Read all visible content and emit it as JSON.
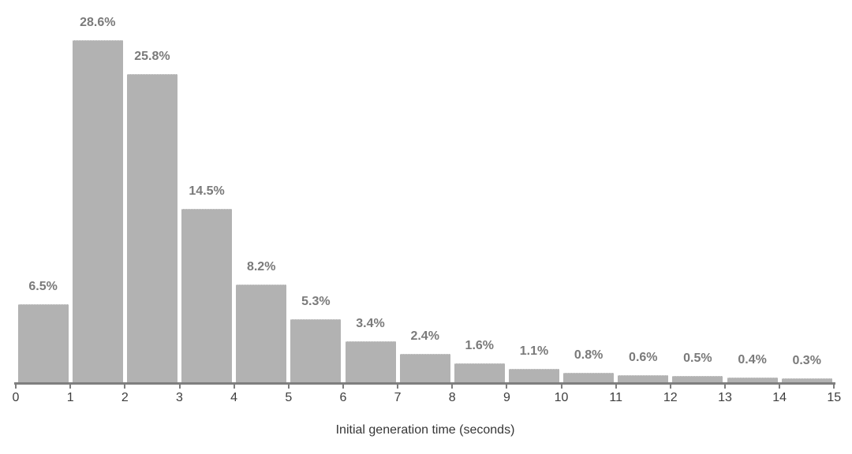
{
  "chart_data": {
    "type": "bar",
    "subtype": "histogram",
    "title": "",
    "xlabel": "Initial generation time (seconds)",
    "ylabel": "",
    "categories": [
      "0-1",
      "1-2",
      "2-3",
      "3-4",
      "4-5",
      "5-6",
      "6-7",
      "7-8",
      "8-9",
      "9-10",
      "10-11",
      "11-12",
      "12-13",
      "13-14",
      "14-15"
    ],
    "values": [
      6.5,
      28.6,
      25.8,
      14.5,
      8.2,
      5.3,
      3.4,
      2.4,
      1.6,
      1.1,
      0.8,
      0.6,
      0.5,
      0.4,
      0.3
    ],
    "value_labels": [
      "6.5%",
      "28.6%",
      "25.8%",
      "14.5%",
      "8.2%",
      "5.3%",
      "3.4%",
      "2.4%",
      "1.6%",
      "1.1%",
      "0.8%",
      "0.6%",
      "0.5%",
      "0.4%",
      "0.3%"
    ],
    "x_ticks": [
      "0",
      "1",
      "2",
      "3",
      "4",
      "5",
      "6",
      "7",
      "8",
      "9",
      "10",
      "11",
      "12",
      "13",
      "14",
      "15"
    ],
    "xlim": [
      0,
      15
    ],
    "ylim": [
      0,
      30
    ],
    "unit": "percent",
    "grid": false,
    "legend": "none",
    "colors": {
      "background": "#ffffff",
      "bar_fill": "#b2b2b2",
      "axis_line": "#7f7f7f",
      "tick_label": "#3d3d3d",
      "value_label": "#7a7a7a",
      "axis_title": "#363636"
    }
  }
}
